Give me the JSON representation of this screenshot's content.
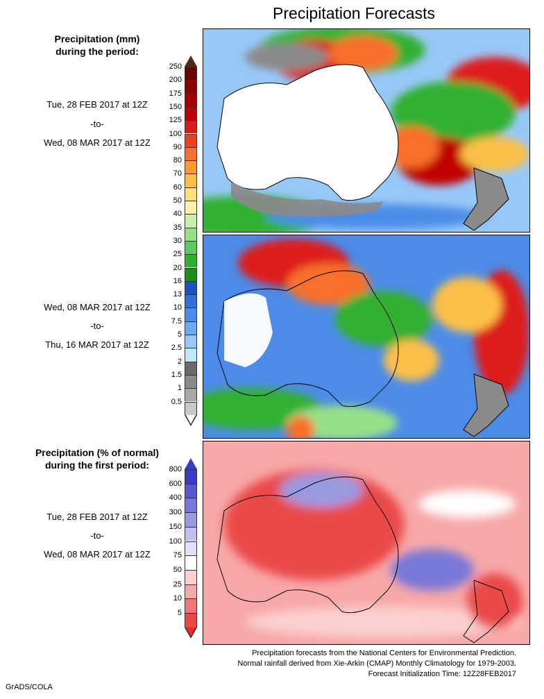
{
  "title": "Precipitation Forecasts",
  "left_header_1": {
    "line1": "Precipitation (mm)",
    "line2": "during the period:"
  },
  "period1": {
    "start": "Tue, 28 FEB 2017 at 12Z",
    "sep": "-to-",
    "end": "Wed, 08 MAR 2017 at 12Z"
  },
  "period2": {
    "start": "Wed, 08 MAR 2017 at 12Z",
    "sep": "-to-",
    "end": "Thu, 16 MAR 2017 at 12Z"
  },
  "left_header_2": {
    "line1": "Precipitation (% of normal)",
    "line2": "during the first period:"
  },
  "period3": {
    "start": "Tue, 28 FEB 2017 at 12Z",
    "sep": "-to-",
    "end": "Wed, 08 MAR 2017 at 12Z"
  },
  "precip_scale": {
    "labels": [
      "250",
      "200",
      "175",
      "150",
      "125",
      "100",
      "90",
      "80",
      "70",
      "60",
      "50",
      "40",
      "35",
      "30",
      "25",
      "20",
      "16",
      "13",
      "10",
      "7.5",
      "5",
      "2.5",
      "2",
      "1.5",
      "1",
      "0.5"
    ],
    "colors": [
      "#6b0000",
      "#8b0000",
      "#a40000",
      "#c00000",
      "#dd1a1a",
      "#f04020",
      "#f8702a",
      "#f89a30",
      "#fcc048",
      "#fde07a",
      "#fef0a8",
      "#c8f0a8",
      "#98e088",
      "#60c860",
      "#30b030",
      "#189018",
      "#2050c0",
      "#3070d8",
      "#4c8ce8",
      "#70a8f0",
      "#98c8f8",
      "#c0e6fc",
      "#6a6a6a",
      "#8a8a8a",
      "#a8a8a8",
      "#c8c8c8"
    ],
    "top_arrow_color": "#4a2a1a",
    "bottom_arrow_color": "#ffffff"
  },
  "pct_scale": {
    "labels": [
      "800",
      "600",
      "400",
      "300",
      "150",
      "100",
      "75",
      "50",
      "25",
      "10",
      "5"
    ],
    "colors": [
      "#3a3ac8",
      "#5858d0",
      "#7878d8",
      "#9a9ae0",
      "#c0c0ec",
      "#e0e0f6",
      "#ffffff",
      "#fcd0d0",
      "#f8a8a8",
      "#f27878",
      "#ea4848"
    ],
    "top_arrow_color": "#3a3ac8",
    "bottom_arrow_color": "#e82a2a"
  },
  "footnote": {
    "line1": "Precipitation forecasts from the National Centers for Environmental Prediction.",
    "line2": "Normal rainfall derived from Xie-Arkin (CMAP) Monthly Climatology for 1979-2003.",
    "line3": "Forecast Initialization Time: 12Z28FEB2017"
  },
  "credit": "GrADS/COLA"
}
